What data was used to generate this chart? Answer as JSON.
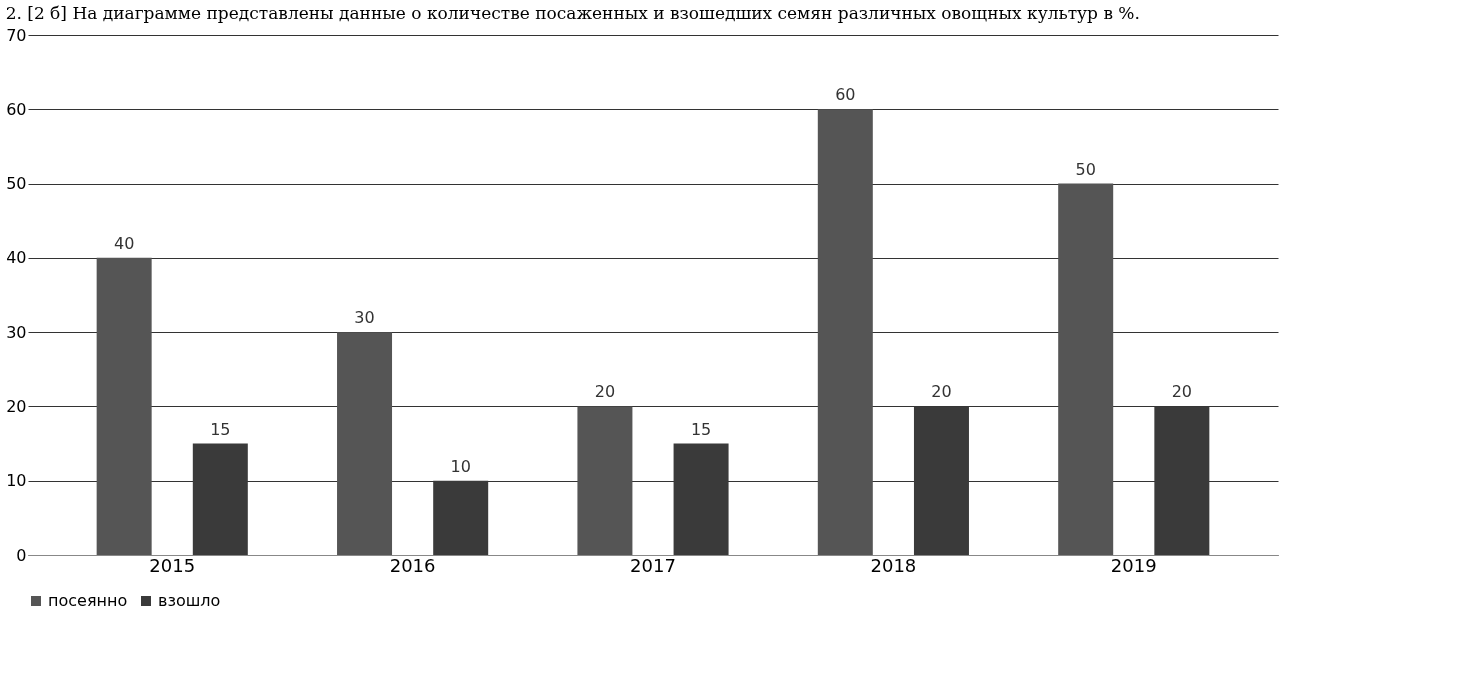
{
  "chart_data": {
    "type": "bar",
    "title": "2. [2 б] На диаграмме представлены данные о количестве посаженных и взошедших семян различных овощных культур в %.",
    "categories": [
      "2015",
      "2016",
      "2017",
      "2018",
      "2019"
    ],
    "series": [
      {
        "name": "посеянно",
        "color": "#555555",
        "values": [
          40,
          30,
          20,
          60,
          50
        ]
      },
      {
        "name": "взошло",
        "color": "#3a3a3a",
        "values": [
          15,
          10,
          15,
          20,
          20
        ]
      }
    ],
    "ylim": [
      0,
      70
    ],
    "yticks": [
      0,
      10,
      20,
      30,
      40,
      50,
      60,
      70
    ],
    "grid": "y",
    "legend": "bottom",
    "data_labels": true
  }
}
